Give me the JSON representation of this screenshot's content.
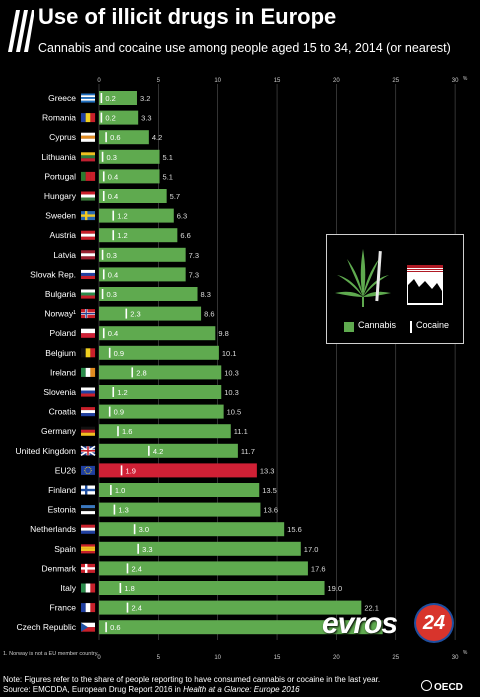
{
  "header": {
    "title": "Use of illicit drugs in Europe",
    "subtitle": "Cannabis and cocaine use among people aged 15 to 34, 2014 (or nearest)"
  },
  "legend": {
    "cannabis": "Cannabis",
    "cocaine": "Cocaine"
  },
  "footnote": "1. Norway is not a EU member country.",
  "note": "Note: Figures refer to the share of people reporting to have consumed cannabis or cocaine in the last year.",
  "source": {
    "prefix": "Source: EMCDDA, European Drug Report 2016 in ",
    "publication": "Health at a Glance: Europe 2016"
  },
  "brand": "OECD",
  "watermark": {
    "text": "evros",
    "badge": "24"
  },
  "colors": {
    "cannabis": "#5faa4f",
    "highlight": "#d02035",
    "cocaine": "#ffffff",
    "background": "#000000"
  },
  "chart_data": {
    "type": "bar",
    "orientation": "horizontal",
    "xlim": [
      0,
      30
    ],
    "xticks": [
      "0",
      "5",
      "10",
      "15",
      "20",
      "25",
      "30"
    ],
    "xunit": "%",
    "grid": true,
    "highlight": "EU26",
    "categories": [
      "Greece",
      "Romania",
      "Cyprus",
      "Lithuania",
      "Portugal",
      "Hungary",
      "Sweden",
      "Austria",
      "Latvia",
      "Slovak Rep.",
      "Bulgaria",
      "Norway¹",
      "Poland",
      "Belgium",
      "Ireland",
      "Slovenia",
      "Croatia",
      "Germany",
      "United Kingdom",
      "EU26",
      "Finland",
      "Estonia",
      "Netherlands",
      "Spain",
      "Denmark",
      "Italy",
      "France",
      "Czech Republic"
    ],
    "flags": [
      "GR",
      "RO",
      "CY",
      "LT",
      "PT",
      "HU",
      "SE",
      "AT",
      "LV",
      "SK",
      "BG",
      "NO",
      "PL",
      "BE",
      "IE",
      "SI",
      "HR",
      "DE",
      "UK",
      "EU",
      "FI",
      "EE",
      "NL",
      "ES",
      "DK",
      "IT",
      "FR",
      "CZ"
    ],
    "series": [
      {
        "name": "Cannabis",
        "values": [
          3.2,
          3.3,
          4.2,
          5.1,
          5.1,
          5.7,
          6.3,
          6.6,
          7.3,
          7.3,
          8.3,
          8.6,
          9.8,
          10.1,
          10.3,
          10.3,
          10.5,
          11.1,
          11.7,
          13.3,
          13.5,
          13.6,
          15.6,
          17.0,
          17.6,
          19.0,
          22.1,
          23.9
        ]
      },
      {
        "name": "Cocaine",
        "values": [
          0.2,
          0.2,
          0.6,
          0.3,
          0.4,
          0.4,
          1.2,
          1.2,
          0.3,
          0.4,
          0.3,
          2.3,
          0.4,
          0.9,
          2.8,
          1.2,
          0.9,
          1.6,
          4.2,
          1.9,
          1.0,
          1.3,
          3.0,
          3.3,
          2.4,
          1.8,
          2.4,
          0.6
        ]
      }
    ],
    "cannabis_labels": [
      "3.2",
      "3.3",
      "4.2",
      "5.1",
      "5.1",
      "5.7",
      "6.3",
      "6.6",
      "7.3",
      "7.3",
      "8.3",
      "8.6",
      "9.8",
      "10.1",
      "10.3",
      "10.3",
      "10.5",
      "11.1",
      "11.7",
      "13.3",
      "13.5",
      "13.6",
      "15.6",
      "17.0",
      "17.6",
      "19.0",
      "22.1",
      ""
    ],
    "cocaine_labels": [
      "0.2",
      "0.2",
      "0.6",
      "0.3",
      "0.4",
      "0.4",
      "1.2",
      "1.2",
      "0.3",
      "0.4",
      "0.3",
      "2.3",
      "0.4",
      "0.9",
      "2.8",
      "1.2",
      "0.9",
      "1.6",
      "4.2",
      "1.9",
      "1.0",
      "1.3",
      "3.0",
      "3.3",
      "2.4",
      "1.8",
      "2.4",
      "0.6"
    ]
  }
}
